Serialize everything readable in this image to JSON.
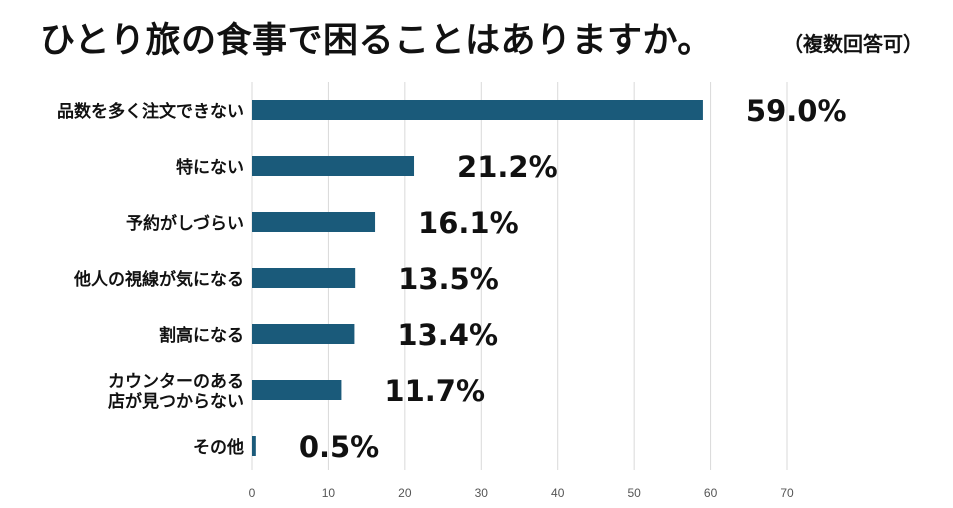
{
  "title": "ひとり旅の食事で困ることはありますか。",
  "subtitle": "（複数回答可）",
  "chart_data": {
    "type": "bar",
    "orientation": "horizontal",
    "title": "ひとり旅の食事で困ることはありますか。",
    "subtitle": "（複数回答可）",
    "categories": [
      [
        "品数を多く注文できない"
      ],
      [
        "特にない"
      ],
      [
        "予約がしづらい"
      ],
      [
        "他人の視線が気になる"
      ],
      [
        "割高になる"
      ],
      [
        "カウンターのある",
        "店が見つからない"
      ],
      [
        "その他"
      ]
    ],
    "values": [
      59.0,
      21.2,
      16.1,
      13.5,
      13.4,
      11.7,
      0.5
    ],
    "value_labels": [
      "59.0%",
      "21.2%",
      "16.1%",
      "13.5%",
      "13.4%",
      "11.7%",
      "0.5%"
    ],
    "x_ticks": [
      "0",
      "10",
      "20",
      "30",
      "40",
      "50",
      "60",
      "70"
    ],
    "xlim": [
      0,
      70
    ],
    "grid": true,
    "bar_color": "#1a5a7a",
    "grid_color": "#d9d9d9"
  }
}
